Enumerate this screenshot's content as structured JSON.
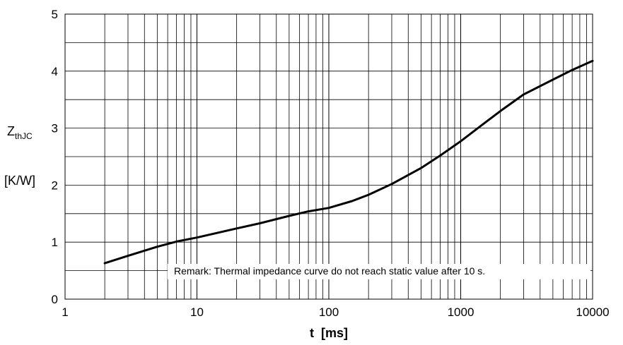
{
  "chart_data": {
    "type": "line",
    "x_scale": "log",
    "xlim": [
      1,
      10000
    ],
    "ylim": [
      0,
      5
    ],
    "grid": true,
    "xlabel": "t  [ms]",
    "ylabel": {
      "main": "Z",
      "subscript": "thJC",
      "unit": "[K/W]"
    },
    "x_ticks": [
      1,
      10,
      100,
      1000,
      10000
    ],
    "x_tick_labels": [
      "1",
      "10",
      "100",
      "1000",
      "10000"
    ],
    "y_ticks": [
      0,
      1,
      2,
      3,
      4,
      5
    ],
    "y_tick_labels": [
      "0",
      "1",
      "2",
      "3",
      "4",
      "5"
    ],
    "annotation": "Remark: Thermal impedance curve do not reach static value after 10 s.",
    "series": [
      {
        "x": [
          2,
          3,
          4,
          5,
          7,
          10,
          20,
          30,
          50,
          70,
          100,
          150,
          200,
          300,
          500,
          700,
          1000,
          1500,
          2000,
          3000,
          5000,
          7000,
          10000
        ],
        "y": [
          0.63,
          0.76,
          0.85,
          0.92,
          1.01,
          1.08,
          1.24,
          1.33,
          1.46,
          1.54,
          1.6,
          1.72,
          1.83,
          2.02,
          2.3,
          2.52,
          2.77,
          3.08,
          3.3,
          3.59,
          3.85,
          4.02,
          4.18
        ]
      }
    ],
    "colors": {
      "line": "#000000",
      "grid": "#000000",
      "background": "#ffffff"
    }
  }
}
